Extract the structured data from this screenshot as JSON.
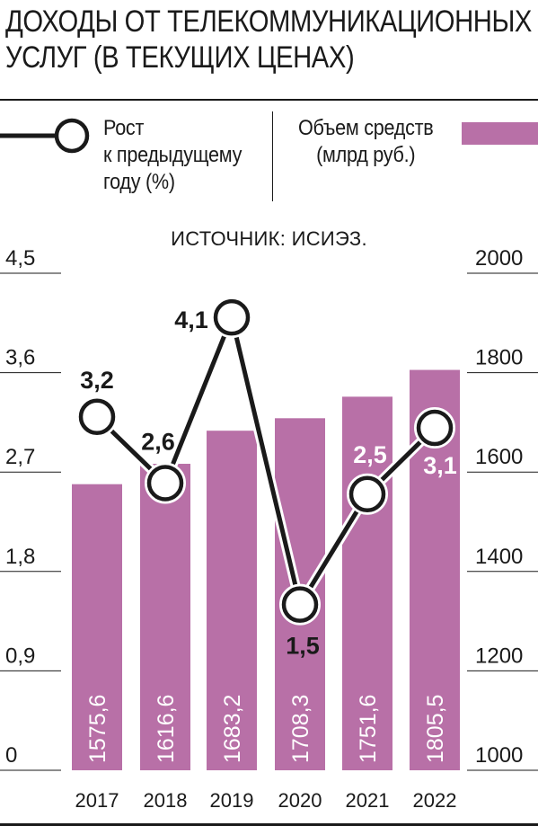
{
  "title_lines": [
    "ДОХОДЫ ОТ ТЕЛЕКОММУНИКАЦИОННЫХ",
    "УСЛУГ (В ТЕКУЩИХ ЦЕНАХ)"
  ],
  "legend": {
    "growth_lines": [
      "Рост",
      "к предыдущему",
      "году (%)"
    ],
    "volume_lines": [
      "Объем средств",
      "(млрд руб.)"
    ]
  },
  "source": "ИСТОЧНИК: ИСИЭЗ.",
  "colors": {
    "bar": "#b870a7",
    "line": "#1a1a1a",
    "text": "#1a1a1a",
    "marker_fill": "#ffffff"
  },
  "chart_data": {
    "type": "bar",
    "categories": [
      "2017",
      "2018",
      "2019",
      "2020",
      "2021",
      "2022"
    ],
    "series": [
      {
        "type": "bar",
        "values": [
          1575.6,
          1616.6,
          1683.2,
          1708.3,
          1751.6,
          1805.5
        ],
        "labels": [
          "1575,6",
          "1616,6",
          "1683,2",
          "1708,3",
          "1751,6",
          "1805,5"
        ],
        "axis": "right"
      },
      {
        "type": "line",
        "values": [
          3.2,
          2.6,
          4.1,
          1.5,
          2.5,
          3.1
        ],
        "labels": [
          "3,2",
          "2,6",
          "4,1",
          "1,5",
          "2,5",
          "3,1"
        ],
        "axis": "left"
      }
    ],
    "left_axis": {
      "ylim": [
        0,
        4.5
      ],
      "ticks": [
        "0",
        "0,9",
        "1,8",
        "2,7",
        "3,6",
        "4,5"
      ]
    },
    "right_axis": {
      "ylim": [
        1000,
        2000
      ],
      "ticks": [
        "1000",
        "1200",
        "1400",
        "1600",
        "1800",
        "2000"
      ]
    }
  }
}
